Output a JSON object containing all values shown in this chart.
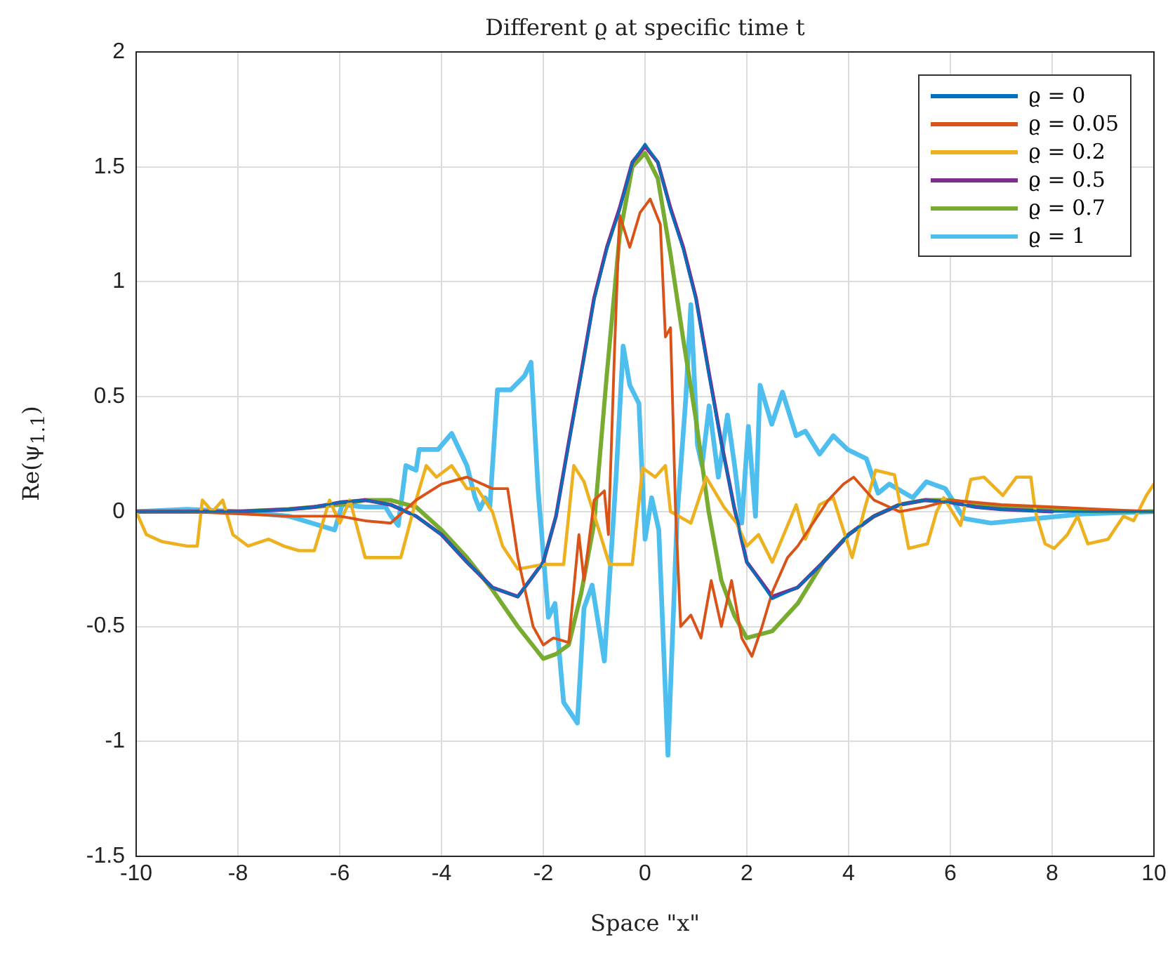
{
  "chart_data": {
    "type": "line",
    "title": "Different ϱ at specific time t",
    "xlabel": "Space \"x\"",
    "ylabel": "Re(ψ$_{1.1}$)",
    "xlim": [
      -10,
      10
    ],
    "xticks": [
      -10,
      -8,
      -6,
      -4,
      -2,
      0,
      2,
      4,
      6,
      8,
      10
    ],
    "ylim": [
      -1.5,
      2
    ],
    "yticks": [
      -1.5,
      -1,
      -0.5,
      0,
      0.5,
      1,
      1.5,
      2
    ],
    "grid": true,
    "legend": "top right",
    "marker": "none",
    "line_style": "solid",
    "series": [
      {
        "name": "ϱ = 0",
        "color": "#0072bd",
        "x": [
          -10,
          -9,
          -8,
          -7,
          -6.5,
          -6,
          -5.5,
          -5,
          -4.5,
          -4,
          -3.5,
          -3,
          -2.5,
          -2,
          -1.75,
          -1.5,
          -1.25,
          -1,
          -0.75,
          -0.5,
          -0.25,
          0,
          0.25,
          0.5,
          0.75,
          1,
          1.25,
          1.5,
          1.75,
          2,
          2.5,
          3,
          3.5,
          4,
          4.5,
          5,
          5.5,
          6,
          6.5,
          7,
          8,
          9,
          10
        ],
        "values": [
          0,
          0,
          0,
          0.01,
          0.02,
          0.04,
          0.05,
          0.03,
          -0.02,
          -0.1,
          -0.22,
          -0.33,
          -0.37,
          -0.22,
          -0.02,
          0.29,
          0.6,
          0.92,
          1.14,
          1.31,
          1.52,
          1.6,
          1.52,
          1.31,
          1.14,
          0.92,
          0.6,
          0.29,
          0.02,
          -0.22,
          -0.38,
          -0.33,
          -0.22,
          -0.1,
          -0.02,
          0.03,
          0.05,
          0.04,
          0.02,
          0.01,
          0,
          0,
          0
        ]
      },
      {
        "name": "ϱ = 0.05",
        "color": "#d95319",
        "x": [
          -10,
          -9,
          -8,
          -7,
          -6,
          -5.5,
          -5,
          -4.5,
          -4,
          -3.5,
          -3,
          -2.7,
          -2.5,
          -2.2,
          -2,
          -1.8,
          -1.5,
          -1.3,
          -1.2,
          -1,
          -0.8,
          -0.72,
          -0.6,
          -0.5,
          -0.3,
          -0.1,
          0,
          0.1,
          0.3,
          0.4,
          0.5,
          0.6,
          0.7,
          0.9,
          1.1,
          1.3,
          1.5,
          1.7,
          1.9,
          2.1,
          2.3,
          2.5,
          2.8,
          3,
          3.3,
          3.6,
          3.9,
          4.1,
          4.5,
          5,
          5.5,
          6,
          7,
          8,
          9,
          10
        ],
        "values": [
          0,
          0,
          -0.01,
          -0.02,
          -0.02,
          -0.04,
          -0.05,
          0.05,
          0.12,
          0.15,
          0.1,
          0.1,
          -0.2,
          -0.5,
          -0.58,
          -0.55,
          -0.57,
          -0.1,
          -0.3,
          0.05,
          0.09,
          -0.1,
          0.7,
          1.29,
          1.15,
          1.3,
          1.33,
          1.36,
          1.25,
          0.76,
          0.8,
          0,
          -0.5,
          -0.45,
          -0.55,
          -0.3,
          -0.5,
          -0.3,
          -0.55,
          -0.63,
          -0.5,
          -0.35,
          -0.2,
          -0.15,
          -0.05,
          0.05,
          0.12,
          0.15,
          0.05,
          0,
          0.02,
          0.05,
          0.03,
          0.02,
          0.01,
          0
        ]
      },
      {
        "name": "ϱ = 0.2",
        "color": "#edb120",
        "x": [
          -10,
          -9.8,
          -9.5,
          -9,
          -8.8,
          -8.7,
          -8.5,
          -8.3,
          -8.1,
          -7.8,
          -7.4,
          -7.1,
          -6.8,
          -6.5,
          -6.2,
          -6,
          -5.8,
          -5.5,
          -5,
          -4.8,
          -4.5,
          -4.3,
          -4.1,
          -3.8,
          -3.5,
          -3.3,
          -3,
          -2.8,
          -2.5,
          -2,
          -1.6,
          -1.4,
          -1.2,
          -0.7,
          -0.25,
          -0.05,
          0.2,
          0.4,
          0.5,
          0.9,
          1.2,
          1.55,
          1.8,
          2,
          2.23,
          2.5,
          2.97,
          3.15,
          3.43,
          3.7,
          3.84,
          4.07,
          4.3,
          4.53,
          4.9,
          5.18,
          5.55,
          5.73,
          5.87,
          6.2,
          6.4,
          6.66,
          7.03,
          7.3,
          7.58,
          7.67,
          7.86,
          8.04,
          8.3,
          8.5,
          8.7,
          9.1,
          9.4,
          9.6,
          9.85,
          10
        ],
        "values": [
          0,
          -0.1,
          -0.13,
          -0.15,
          -0.15,
          0.05,
          0,
          0.05,
          -0.1,
          -0.15,
          -0.12,
          -0.15,
          -0.17,
          -0.17,
          0.05,
          -0.05,
          0.05,
          -0.2,
          -0.2,
          -0.2,
          0.05,
          0.2,
          0.15,
          0.2,
          0.1,
          0.1,
          0,
          -0.15,
          -0.25,
          -0.23,
          -0.23,
          0.2,
          0.13,
          -0.23,
          -0.23,
          0.19,
          0.15,
          0.2,
          0,
          -0.05,
          0.15,
          0.02,
          -0.05,
          -0.15,
          -0.1,
          -0.22,
          0.03,
          -0.12,
          0.03,
          0.06,
          -0.04,
          -0.2,
          0,
          0.18,
          0.16,
          -0.16,
          -0.14,
          0,
          0.06,
          -0.06,
          0.14,
          0.15,
          0.07,
          0.15,
          0.15,
          0,
          -0.14,
          -0.16,
          -0.1,
          -0.02,
          -0.14,
          -0.12,
          -0.02,
          -0.04,
          0.07,
          0.12
        ]
      },
      {
        "name": "ϱ = 0.5",
        "color": "#7e2f8e",
        "x": [
          -10,
          -9,
          -8,
          -7,
          -6.5,
          -6,
          -5.5,
          -5,
          -4.5,
          -4,
          -3.5,
          -3,
          -2.5,
          -2,
          -1.75,
          -1.5,
          -1.25,
          -1,
          -0.75,
          -0.5,
          -0.25,
          0,
          0.25,
          0.5,
          0.75,
          1,
          1.25,
          1.5,
          1.75,
          2,
          2.5,
          3,
          3.5,
          4,
          4.5,
          5,
          5.5,
          6,
          6.5,
          7,
          8
        ],
        "values": [
          0,
          0,
          0,
          0.01,
          0.02,
          0.04,
          0.05,
          0.03,
          -0.02,
          -0.1,
          -0.22,
          -0.33,
          -0.37,
          -0.22,
          -0.02,
          0.3,
          0.61,
          0.93,
          1.15,
          1.32,
          1.52,
          1.59,
          1.52,
          1.32,
          1.15,
          0.93,
          0.61,
          0.3,
          0.02,
          -0.22,
          -0.37,
          -0.33,
          -0.22,
          -0.1,
          -0.02,
          0.03,
          0.05,
          0.04,
          0.02,
          0.01,
          0
        ]
      },
      {
        "name": "ϱ = 0.7",
        "color": "#77ac30",
        "x": [
          -10,
          -9,
          -8,
          -7,
          -6,
          -5.5,
          -5,
          -4.5,
          -4,
          -3.5,
          -3,
          -2.5,
          -2,
          -1.75,
          -1.5,
          -1.25,
          -1,
          -0.75,
          -0.5,
          -0.25,
          0,
          0.25,
          0.5,
          0.75,
          1,
          1.25,
          1.5,
          1.75,
          2,
          2.5,
          3,
          3.5,
          4,
          4.5,
          5,
          5.5,
          6,
          6.5,
          7,
          8,
          9,
          10
        ],
        "values": [
          0,
          0,
          0,
          0.01,
          0.03,
          0.05,
          0.05,
          0.02,
          -0.08,
          -0.2,
          -0.34,
          -0.5,
          -0.64,
          -0.62,
          -0.58,
          -0.35,
          -0.05,
          0.6,
          1.2,
          1.5,
          1.56,
          1.45,
          1.12,
          0.75,
          0.4,
          0,
          -0.3,
          -0.45,
          -0.55,
          -0.52,
          -0.4,
          -0.22,
          -0.1,
          -0.02,
          0.03,
          0.05,
          0.05,
          0.03,
          0.02,
          0.01,
          0,
          0
        ]
      },
      {
        "name": "ϱ = 1",
        "color": "#4dbeee",
        "x": [
          -10,
          -9,
          -8,
          -7,
          -6.1,
          -5.95,
          -5.5,
          -5.1,
          -4.99,
          -4.85,
          -4.7,
          -4.5,
          -4.44,
          -4.07,
          -3.8,
          -3.5,
          -3.34,
          -3.25,
          -3.14,
          -3.05,
          -2.9,
          -2.64,
          -2.37,
          -2.24,
          -2.1,
          -1.9,
          -1.77,
          -1.6,
          -1.33,
          -1.2,
          -1.04,
          -0.8,
          -0.57,
          -0.43,
          -0.3,
          -0.12,
          0,
          0.13,
          0.27,
          0.45,
          0.63,
          0.8,
          0.9,
          1.03,
          1.12,
          1.26,
          1.44,
          1.62,
          1.76,
          1.9,
          2.03,
          2.17,
          2.26,
          2.49,
          2.7,
          2.97,
          3.15,
          3.43,
          3.7,
          3.98,
          4.35,
          4.58,
          4.8,
          5.26,
          5.53,
          5.9,
          6.27,
          6.8,
          7.7,
          8.6,
          10
        ],
        "values": [
          0,
          0.01,
          0,
          -0.02,
          -0.08,
          0.03,
          0.02,
          0.02,
          -0.02,
          -0.06,
          0.2,
          0.18,
          0.27,
          0.27,
          0.34,
          0.2,
          0.06,
          0.01,
          0.06,
          0.02,
          0.53,
          0.53,
          0.59,
          0.65,
          0.09,
          -0.46,
          -0.4,
          -0.83,
          -0.92,
          -0.42,
          -0.32,
          -0.65,
          0.15,
          0.72,
          0.55,
          0.47,
          -0.12,
          0.06,
          -0.08,
          -1.06,
          -0.02,
          0.49,
          0.9,
          0.29,
          0.2,
          0.46,
          0.15,
          0.42,
          0.2,
          -0.05,
          0.37,
          -0.02,
          0.55,
          0.38,
          0.52,
          0.33,
          0.35,
          0.25,
          0.33,
          0.27,
          0.23,
          0.08,
          0.12,
          0.06,
          0.13,
          0.1,
          -0.03,
          -0.05,
          -0.03,
          -0.01,
          0
        ]
      }
    ]
  }
}
